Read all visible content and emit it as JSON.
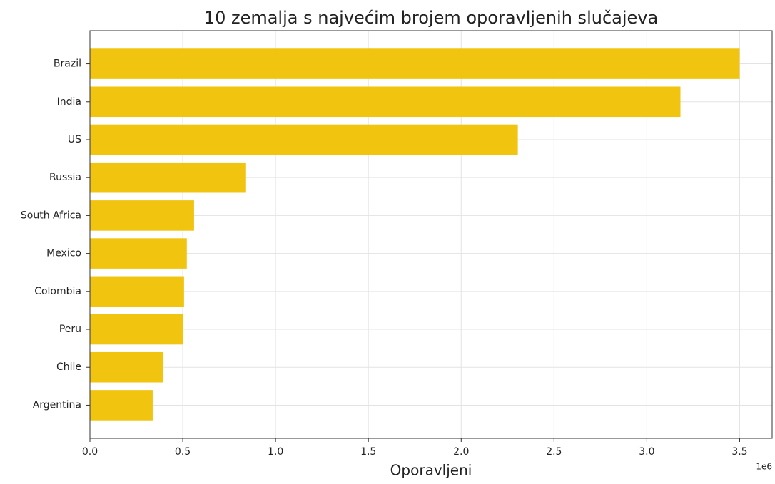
{
  "chart_data": {
    "type": "barh",
    "title": "10 zemalja s najvećim brojem oporavljenih slučajeva",
    "x_label": "Oporavljeni",
    "x_offset_label": "1e6",
    "categories": [
      "Brazil",
      "India",
      "US",
      "Russia",
      "South Africa",
      "Mexico",
      "Colombia",
      "Peru",
      "Chile",
      "Argentina"
    ],
    "values": [
      3.5,
      3.181,
      2.305,
      0.841,
      0.561,
      0.522,
      0.507,
      0.503,
      0.396,
      0.338
    ],
    "color": "#f1c40f",
    "xlim": [
      0,
      3.675
    ],
    "xticks": [
      {
        "value": 0,
        "label": "0.0"
      },
      0.5,
      {
        "value": 1,
        "label": "1.0"
      },
      1.5,
      {
        "value": 2,
        "label": "2.0"
      },
      2.5,
      {
        "value": 3,
        "label": "3.0"
      },
      3.5
    ],
    "grid": true
  }
}
